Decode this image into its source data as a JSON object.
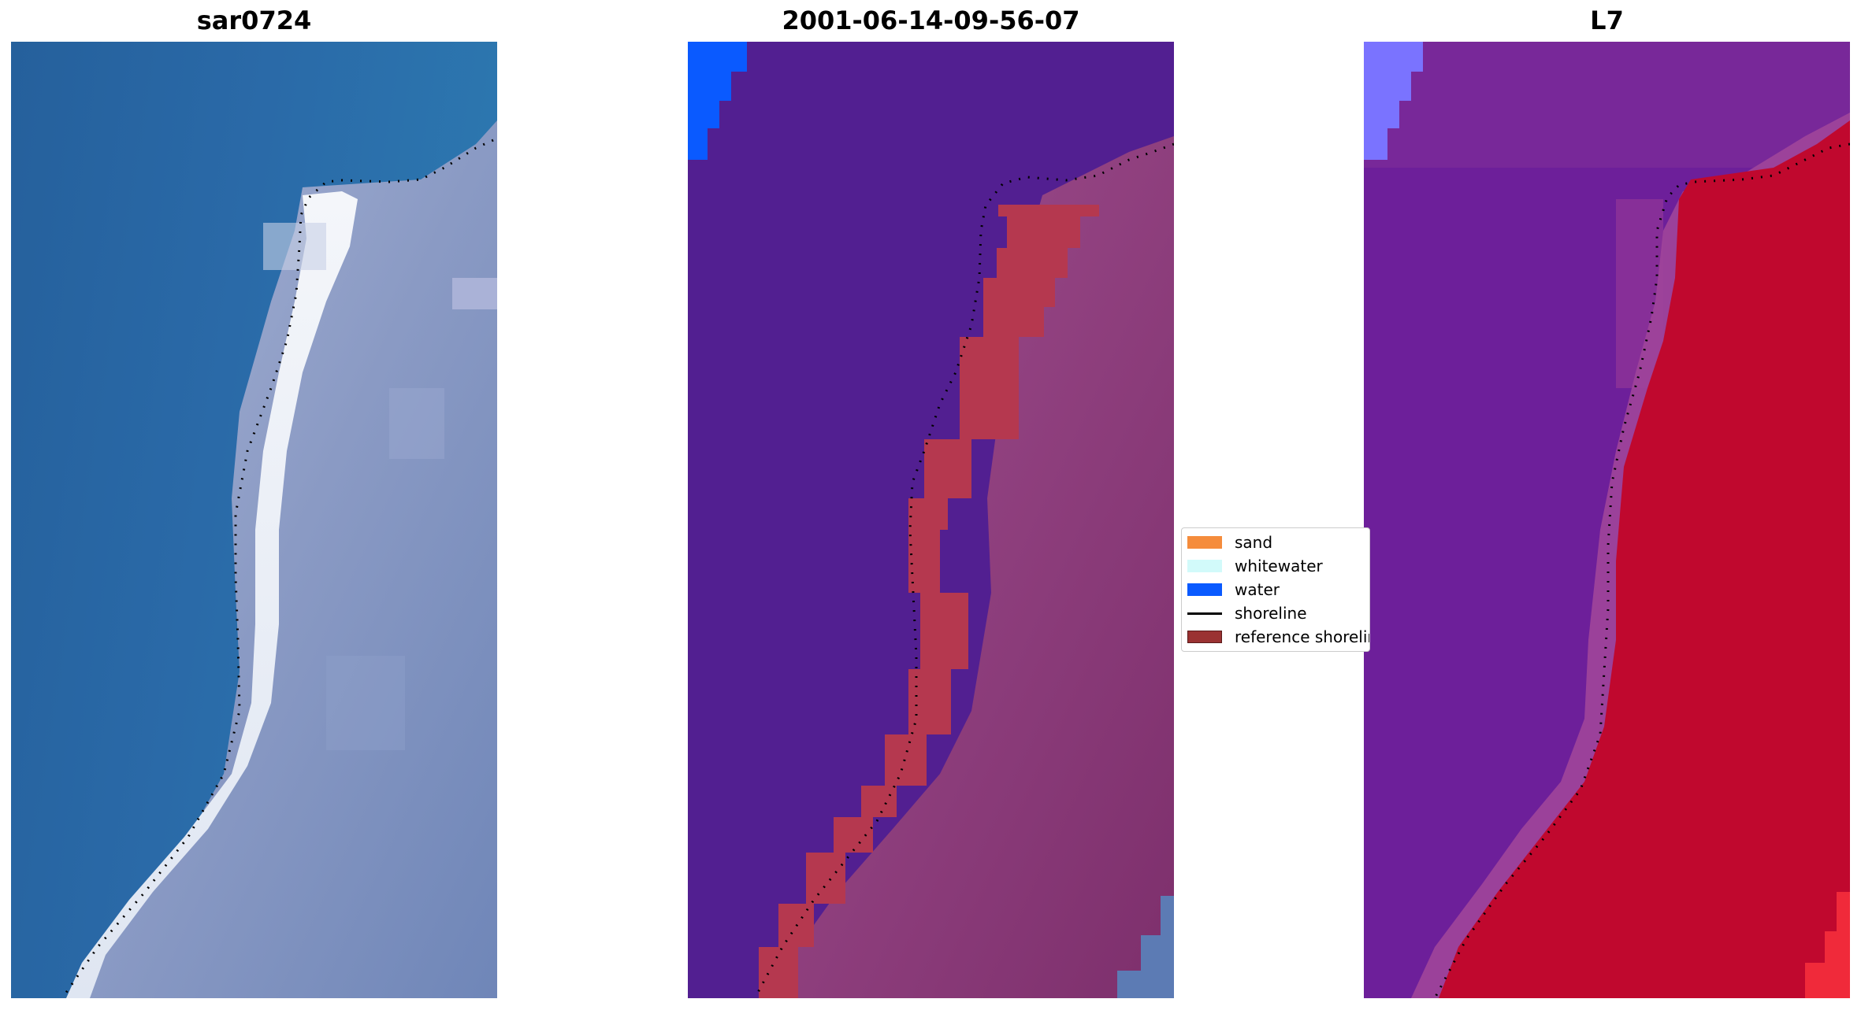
{
  "panels": [
    {
      "title": "sar0724",
      "type": "rgb-image"
    },
    {
      "title": "2001-06-14-09-56-07",
      "type": "classified-image"
    },
    {
      "title": "L7",
      "type": "index-image"
    }
  ],
  "legend": {
    "items": [
      {
        "label": "sand",
        "color": "#f58c3c",
        "kind": "patch"
      },
      {
        "label": "whitewater",
        "color": "#d2fafa",
        "kind": "patch"
      },
      {
        "label": "water",
        "color": "#0a5aff",
        "kind": "patch"
      },
      {
        "label": "shoreline",
        "color": "#000000",
        "kind": "line"
      },
      {
        "label": "reference shoreline",
        "color": "#9a3232",
        "kind": "patch"
      }
    ]
  },
  "colors": {
    "ocean_blue": "#2a6aa8",
    "surf_white": "#e8eef6",
    "land_gray": "#7f94c0",
    "class_water_purple": "#521f91",
    "class_sand_red": "#b5384f",
    "class_land_mauve": "#8a3b7a",
    "index_purple": "#6d1f9a",
    "index_red": "#c0082e"
  }
}
